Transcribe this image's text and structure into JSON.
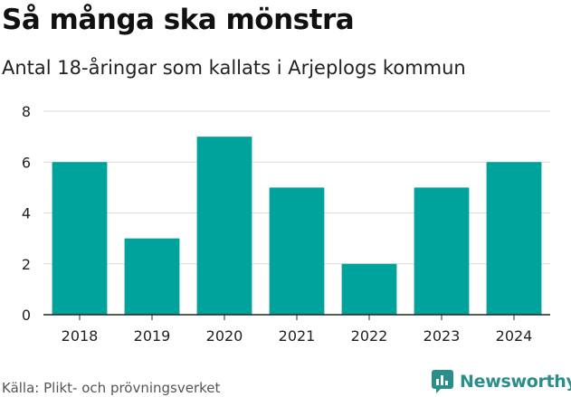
{
  "title": "Så många ska mönstra",
  "subtitle": "Antal 18-åringar som kallats i Arjeplogs kommun",
  "source": "Källa: Plikt- och prövningsverket",
  "brand": "Newsworthy",
  "colors": {
    "bar": "#00a39b",
    "grid": "#d9d9d9",
    "axis": "#222222",
    "brand": "#2a8f8a"
  },
  "chart_data": {
    "type": "bar",
    "categories": [
      "2018",
      "2019",
      "2020",
      "2021",
      "2022",
      "2023",
      "2024"
    ],
    "values": [
      6,
      3,
      7,
      5,
      2,
      5,
      6
    ],
    "title": "Så många ska mönstra",
    "subtitle": "Antal 18-åringar som kallats i Arjeplogs kommun",
    "xlabel": "",
    "ylabel": "",
    "ylim": [
      0,
      8
    ],
    "yticks": [
      0,
      2,
      4,
      6,
      8
    ],
    "grid": true
  }
}
